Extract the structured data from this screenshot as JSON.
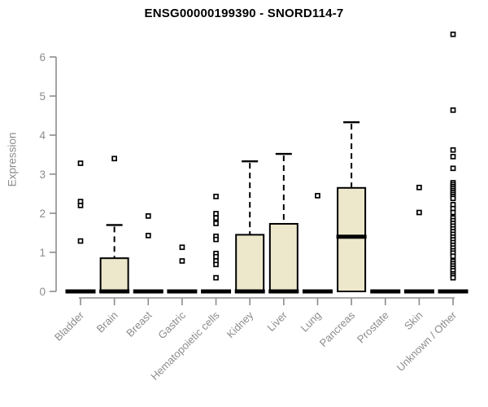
{
  "title": "ENSG00000199390 - SNORD114-7",
  "colors": {
    "box_fill": "#EDE8CC",
    "box_stroke": "#000000",
    "median": "#000000",
    "outlier_stroke": "#000000",
    "outlier_fill": "#FFFFFF",
    "axis": "#8C8C8C",
    "tick_label": "#8C8C8C",
    "title_color": "#000000"
  },
  "chart_data": {
    "type": "boxplot",
    "title": "ENSG00000199390 - SNORD114-7",
    "xlabel": "",
    "ylabel": "Expression",
    "ylim": [
      0,
      6.8
    ],
    "yticks": [
      0,
      1,
      2,
      3,
      4,
      5,
      6
    ],
    "grid": false,
    "legend": "none",
    "categories": [
      "Bladder",
      "Brain",
      "Breast",
      "Gastric",
      "Hematopoietic cells",
      "Kidney",
      "Liver",
      "Lung",
      "Pancreas",
      "Prostate",
      "Skin",
      "Unknown / Other"
    ],
    "series": [
      {
        "name": "Bladder",
        "q1": 0,
        "median": 0,
        "q3": 0,
        "whisker_low": 0,
        "whisker_high": 0,
        "outliers": [
          3.28,
          2.3,
          2.2,
          1.29
        ]
      },
      {
        "name": "Brain",
        "q1": 0,
        "median": 0,
        "q3": 0.85,
        "whisker_low": 0,
        "whisker_high": 1.7,
        "outliers": [
          3.4
        ]
      },
      {
        "name": "Breast",
        "q1": 0,
        "median": 0,
        "q3": 0,
        "whisker_low": 0,
        "whisker_high": 0,
        "outliers": [
          1.93,
          1.43
        ]
      },
      {
        "name": "Gastric",
        "q1": 0,
        "median": 0,
        "q3": 0,
        "whisker_low": 0,
        "whisker_high": 0,
        "outliers": [
          1.13,
          0.78
        ]
      },
      {
        "name": "Hematopoietic cells",
        "q1": 0,
        "median": 0,
        "q3": 0,
        "whisker_low": 0,
        "whisker_high": 0,
        "outliers": [
          2.43,
          1.99,
          1.88,
          1.74,
          1.41,
          1.33,
          0.97,
          0.89,
          0.78,
          0.69,
          0.35
        ]
      },
      {
        "name": "Kidney",
        "q1": 0,
        "median": 0,
        "q3": 1.45,
        "whisker_low": 0,
        "whisker_high": 3.33,
        "outliers": []
      },
      {
        "name": "Liver",
        "q1": 0,
        "median": 0,
        "q3": 1.73,
        "whisker_low": 0,
        "whisker_high": 3.52,
        "outliers": []
      },
      {
        "name": "Lung",
        "q1": 0,
        "median": 0,
        "q3": 0,
        "whisker_low": 0,
        "whisker_high": 0,
        "outliers": [
          2.45
        ]
      },
      {
        "name": "Pancreas",
        "q1": 0,
        "median": 1.4,
        "q3": 2.65,
        "whisker_low": 0,
        "whisker_high": 4.33,
        "outliers": []
      },
      {
        "name": "Prostate",
        "q1": 0,
        "median": 0,
        "q3": 0,
        "whisker_low": 0,
        "whisker_high": 0,
        "outliers": []
      },
      {
        "name": "Skin",
        "q1": 0,
        "median": 0,
        "q3": 0,
        "whisker_low": 0,
        "whisker_high": 0,
        "outliers": [
          2.66,
          2.02
        ]
      },
      {
        "name": "Unknown / Other",
        "q1": 0,
        "median": 0,
        "q3": 0,
        "whisker_low": 0,
        "whisker_high": 0,
        "outliers": [
          6.58,
          4.64,
          3.62,
          3.45,
          3.15,
          2.78,
          2.73,
          2.68,
          2.63,
          2.58,
          2.53,
          2.48,
          2.43,
          2.38,
          2.22,
          2.12,
          2.02,
          1.88,
          1.81,
          1.74,
          1.67,
          1.6,
          1.53,
          1.46,
          1.39,
          1.32,
          1.25,
          1.18,
          1.11,
          1.04,
          0.98,
          0.9,
          0.77,
          0.71,
          0.65,
          0.59,
          0.53,
          0.45,
          0.4,
          0.35
        ]
      }
    ]
  }
}
